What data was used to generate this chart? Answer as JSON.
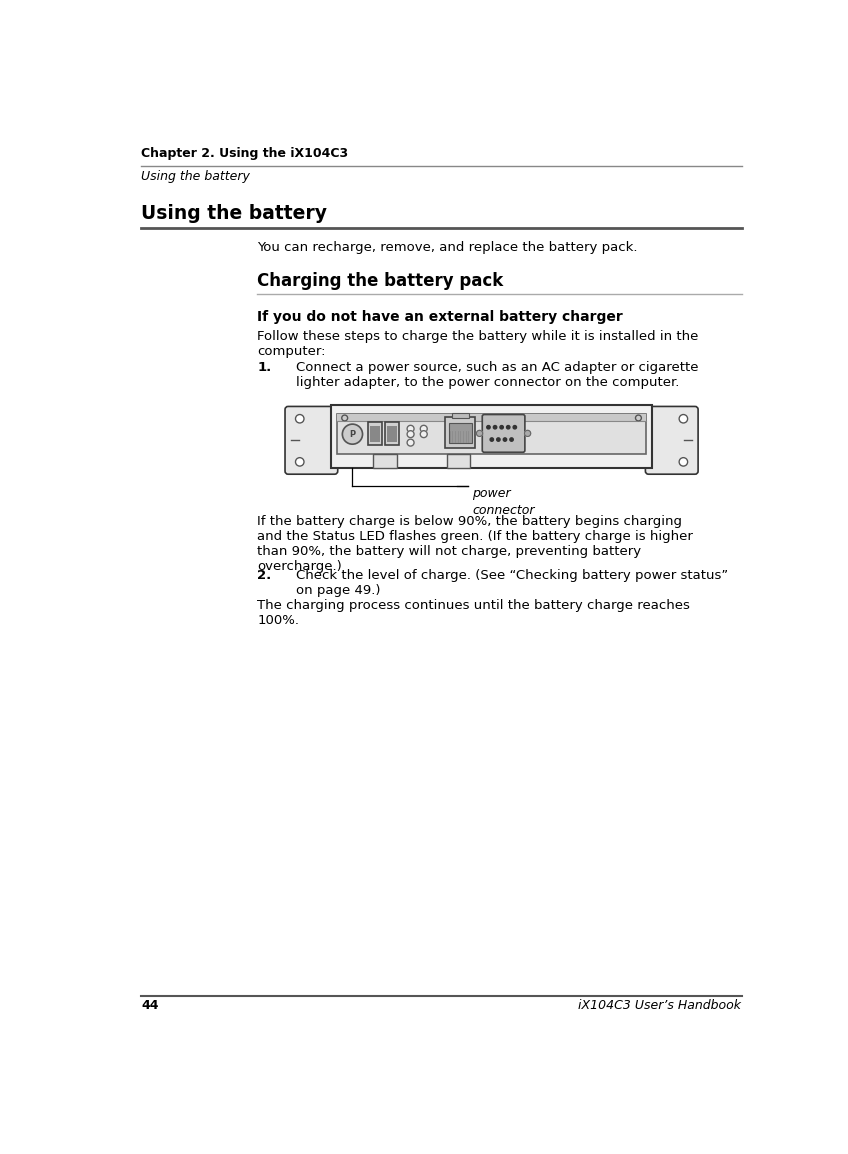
{
  "bg_color": "#ffffff",
  "header_chapter": "Chapter 2. Using the iX104C3",
  "header_section": "Using the battery",
  "footer_page": "44",
  "footer_title": "iX104C3 User’s Handbook",
  "section_title": "Using the battery",
  "intro_text": "You can recharge, remove, and replace the battery pack.",
  "subsection_title": "Charging the battery pack",
  "subsubsection_title": "If you do not have an external battery charger",
  "body1_line1": "Follow these steps to charge the battery while it is installed in the",
  "body1_line2": "computer:",
  "step1_num": "1.",
  "step1_line1": "Connect a power source, such as an AC adapter or cigarette",
  "step1_line2": "lighter adapter, to the power connector on the computer.",
  "note_line1": "If the battery charge is below 90%, the battery begins charging",
  "note_line2": "and the Status LED flashes green. (If the battery charge is higher",
  "note_line3": "than 90%, the battery will not charge, preventing battery",
  "note_line4": "overcharge.)",
  "step2_num": "2.",
  "step2_line1": "Check the level of charge. (See “Checking battery power status”",
  "step2_line2": "on page 49.)",
  "body2_line1": "The charging process continues until the battery charge reaches",
  "body2_line2": "100%.",
  "caption_line1": "power",
  "caption_line2": "connector",
  "header_line_color": "#888888",
  "footer_line_color": "#555555",
  "section_line_color": "#555555",
  "subsection_line_color": "#aaaaaa",
  "text_color": "#000000",
  "lm": 0.455,
  "cl": 1.95,
  "cr": 8.2,
  "step_indent": 2.45
}
